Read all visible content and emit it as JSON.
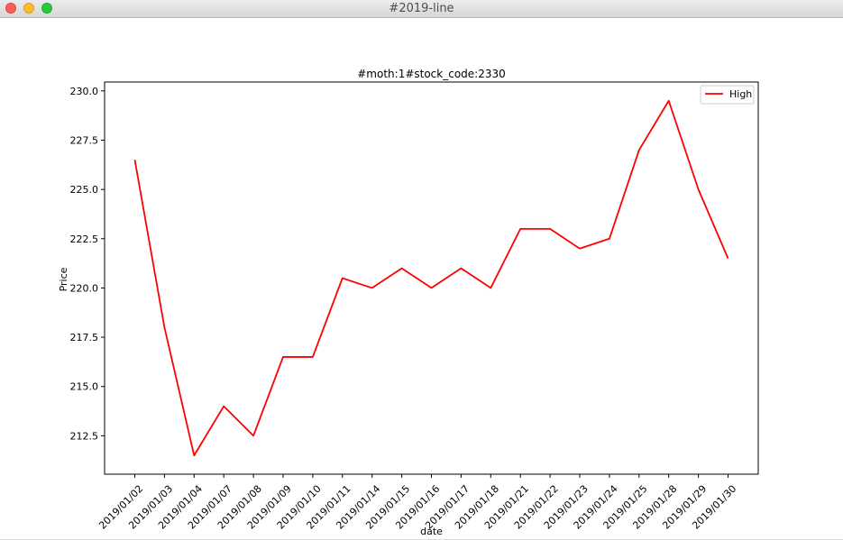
{
  "window": {
    "title": "#2019-line",
    "colors": {
      "close": "#fc5f57",
      "minimize": "#fdbc2e",
      "maximize": "#28c840"
    }
  },
  "chart_data": {
    "type": "line",
    "title": "#moth:1#stock_code:2330",
    "xlabel": "date",
    "ylabel": "Price",
    "categories": [
      "2019/01/02",
      "2019/01/03",
      "2019/01/04",
      "2019/01/07",
      "2019/01/08",
      "2019/01/09",
      "2019/01/10",
      "2019/01/11",
      "2019/01/14",
      "2019/01/15",
      "2019/01/16",
      "2019/01/17",
      "2019/01/18",
      "2019/01/21",
      "2019/01/22",
      "2019/01/23",
      "2019/01/24",
      "2019/01/25",
      "2019/01/28",
      "2019/01/29",
      "2019/01/30"
    ],
    "series": [
      {
        "name": "High",
        "color": "#ff0000",
        "values": [
          226.5,
          218.0,
          211.5,
          214.0,
          212.5,
          216.5,
          216.5,
          220.5,
          220.0,
          221.0,
          220.0,
          221.0,
          220.0,
          223.0,
          223.0,
          222.0,
          222.5,
          227.0,
          229.5,
          225.0,
          221.5
        ]
      }
    ],
    "yticks": [
      "212.5",
      "215.0",
      "217.5",
      "220.0",
      "222.5",
      "225.0",
      "227.5",
      "230.0"
    ],
    "ylim": [
      210.55,
      230.45
    ],
    "grid": false,
    "legend": "top-right"
  }
}
